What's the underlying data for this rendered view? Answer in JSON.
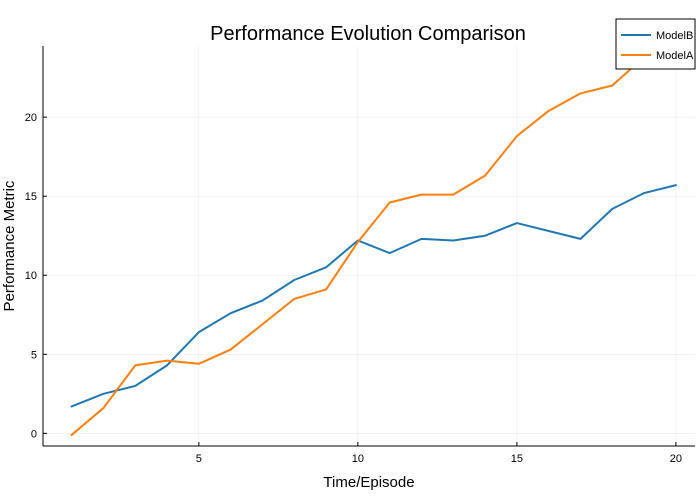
{
  "chart_data": {
    "type": "line",
    "title": "Performance Evolution Comparison",
    "xlabel": "Time/Episode",
    "ylabel": "Performance Metric",
    "xlim": [
      0.1,
      20.6
    ],
    "ylim": [
      -0.8,
      24.5
    ],
    "xticks": [
      5,
      10,
      15,
      20
    ],
    "yticks": [
      0,
      5,
      10,
      15,
      20
    ],
    "grid": true,
    "legend_position": "top-right",
    "x": [
      1,
      2,
      3,
      4,
      5,
      6,
      7,
      8,
      9,
      10,
      11,
      12,
      13,
      14,
      15,
      16,
      17,
      18,
      19,
      20
    ],
    "series": [
      {
        "name": "ModelB",
        "color": "#1f77b4",
        "values": [
          1.7,
          2.5,
          3.0,
          4.3,
          6.4,
          7.6,
          8.4,
          9.7,
          10.5,
          12.2,
          11.4,
          12.3,
          12.2,
          12.5,
          13.3,
          12.8,
          12.3,
          14.2,
          15.2,
          15.7
        ]
      },
      {
        "name": "ModelA",
        "color": "#ff7f0e",
        "values": [
          -0.1,
          1.6,
          4.3,
          4.6,
          4.4,
          5.3,
          6.9,
          8.5,
          9.1,
          12.1,
          14.6,
          15.1,
          15.1,
          16.3,
          18.8,
          20.4,
          21.5,
          22.0,
          23.8,
          24.5
        ]
      }
    ]
  }
}
